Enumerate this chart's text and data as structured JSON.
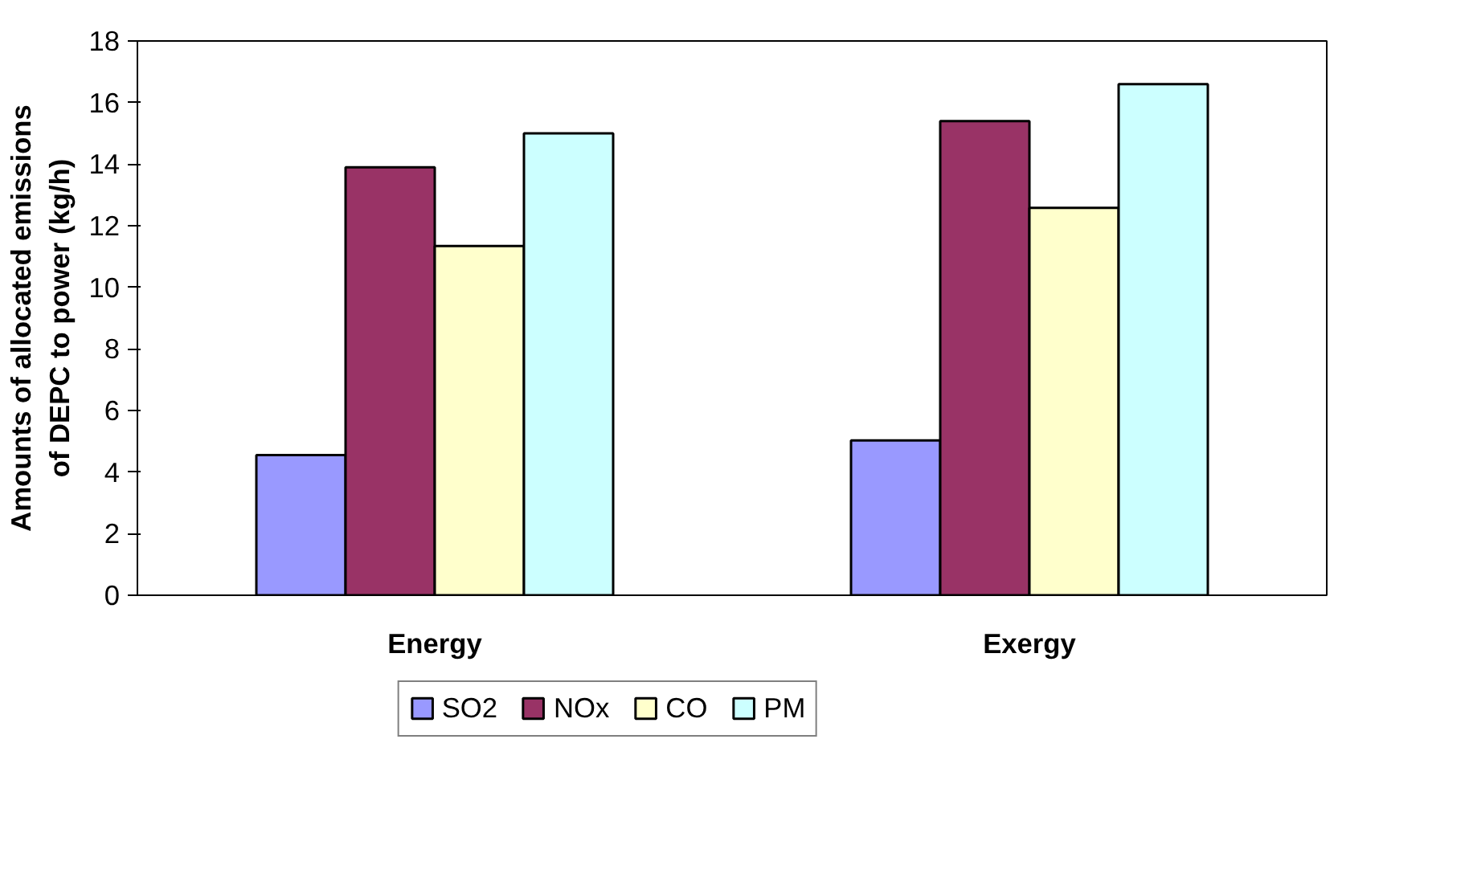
{
  "chart_data": {
    "type": "bar",
    "ylabel": "Amounts of allocated emissions of DEPC to power (kg/h)",
    "categories": [
      "Energy",
      "Exergy"
    ],
    "series": [
      {
        "name": "SO2",
        "color": "#9999ff",
        "values": [
          4.55,
          5.03
        ]
      },
      {
        "name": "NOx",
        "color": "#993366",
        "values": [
          13.9,
          15.4
        ]
      },
      {
        "name": "CO",
        "color": "#ffffcc",
        "values": [
          11.34,
          12.58
        ]
      },
      {
        "name": "PM",
        "color": "#ccffff",
        "values": [
          15.0,
          16.6
        ]
      }
    ],
    "ylim": [
      0,
      18
    ],
    "yticks": [
      0,
      2,
      4,
      6,
      8,
      10,
      12,
      14,
      16,
      18
    ],
    "grid": false,
    "legend": "bottom"
  }
}
